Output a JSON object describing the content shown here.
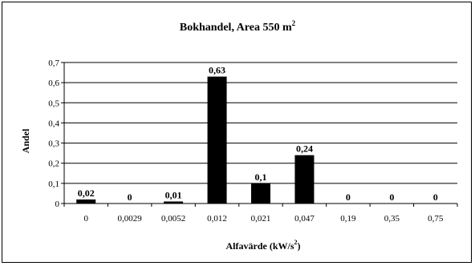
{
  "chart_data": {
    "type": "bar",
    "title": "Bokhandel, Area 550 m",
    "title_superscript": "2",
    "xlabel": "Alfavärde (kW/s",
    "xlabel_superscript": "2",
    "xlabel_suffix": ")",
    "ylabel": "Andel",
    "categories": [
      "0",
      "0,0029",
      "0,0052",
      "0,012",
      "0,021",
      "0,047",
      "0,19",
      "0,35",
      "0,75"
    ],
    "values": [
      0.02,
      0,
      0.01,
      0.63,
      0.1,
      0.24,
      0,
      0,
      0
    ],
    "data_labels": [
      "0,02",
      "0",
      "0,01",
      "0,63",
      "0,1",
      "0,24",
      "0",
      "0",
      "0"
    ],
    "ylim": [
      0,
      0.7
    ],
    "yticks": [
      0,
      0.1,
      0.2,
      0.3,
      0.4,
      0.5,
      0.6,
      0.7
    ],
    "ytick_labels": [
      "0",
      "0,1",
      "0,2",
      "0,3",
      "0,4",
      "0,5",
      "0,6",
      "0,7"
    ],
    "grid": true,
    "bar_color": "#000000"
  }
}
